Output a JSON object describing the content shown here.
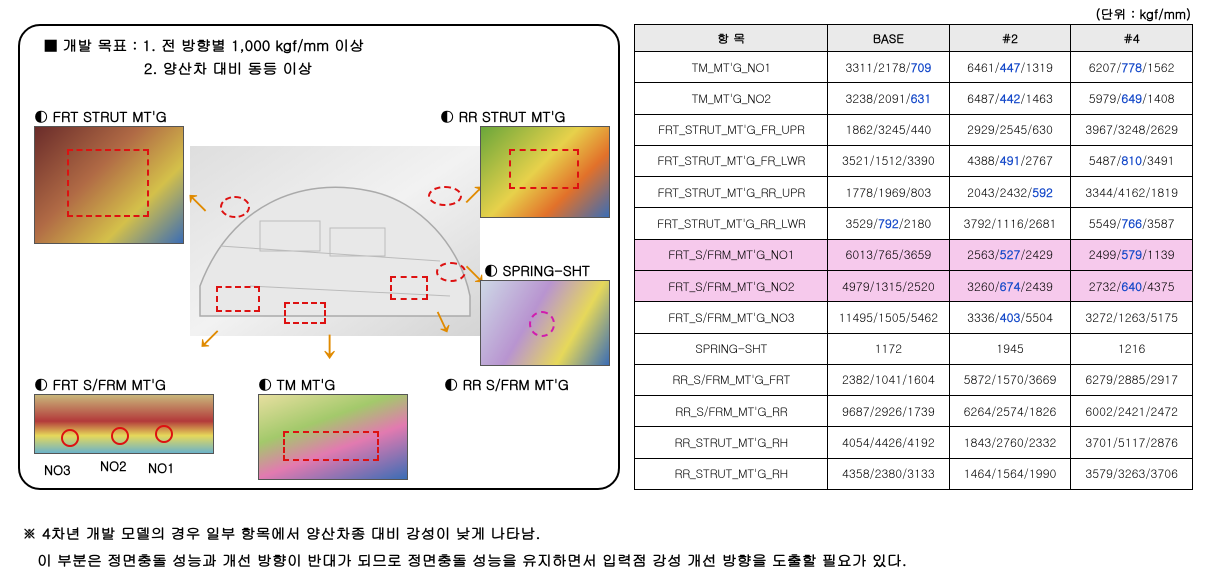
{
  "unit": "(단위 : kgf/mm)",
  "goal_prefix": "■ 개발 목표 : ",
  "goal1": "1. 전 방향별 1,000 kgf/mm 이상",
  "goal2": "2. 양산차 대비 동등 이상",
  "callouts": {
    "frt_strut": "◐ FRT STRUT MT'G",
    "rr_strut": "◐ RR STRUT MT'G",
    "spring_sht": "◐ SPRING-SHT",
    "frt_sfrm": "◐ FRT S/FRM MT'G",
    "tm": "◐ TM MT'G",
    "rr_sfrm": "◐ RR S/FRM MT'G"
  },
  "no_labels": {
    "no1": "NO1",
    "no2": "NO2",
    "no3": "NO3"
  },
  "table": {
    "headers": [
      "항 목",
      "BASE",
      "#2",
      "#4"
    ],
    "rows": [
      {
        "item": "TM_MT'G_NO1",
        "hl": false,
        "cells": [
          [
            {
              "t": "3311/2178/",
              "c": 0
            },
            {
              "t": "709",
              "c": 1
            }
          ],
          [
            {
              "t": "6461/",
              "c": 0
            },
            {
              "t": "447",
              "c": 1
            },
            {
              "t": "/1319",
              "c": 0
            }
          ],
          [
            {
              "t": "6207/",
              "c": 0
            },
            {
              "t": "778",
              "c": 1
            },
            {
              "t": "/1562",
              "c": 0
            }
          ]
        ]
      },
      {
        "item": "TM_MT'G_NO2",
        "hl": false,
        "cells": [
          [
            {
              "t": "3238/2091/",
              "c": 0
            },
            {
              "t": "631",
              "c": 1
            }
          ],
          [
            {
              "t": "6487/",
              "c": 0
            },
            {
              "t": "442",
              "c": 1
            },
            {
              "t": "/1463",
              "c": 0
            }
          ],
          [
            {
              "t": "5979/",
              "c": 0
            },
            {
              "t": "649",
              "c": 1
            },
            {
              "t": "/1408",
              "c": 0
            }
          ]
        ]
      },
      {
        "item": "FRT_STRUT_MT'G_FR_UPR",
        "hl": false,
        "cells": [
          [
            {
              "t": "1862/3245/440",
              "c": 0
            }
          ],
          [
            {
              "t": "2929/2545/630",
              "c": 0
            }
          ],
          [
            {
              "t": "3967/3248/2629",
              "c": 0
            }
          ]
        ]
      },
      {
        "item": "FRT_STRUT_MT'G_FR_LWR",
        "hl": false,
        "cells": [
          [
            {
              "t": "3521/1512/3390",
              "c": 0
            }
          ],
          [
            {
              "t": "4388/",
              "c": 0
            },
            {
              "t": "491",
              "c": 1
            },
            {
              "t": "/2767",
              "c": 0
            }
          ],
          [
            {
              "t": "5487/",
              "c": 0
            },
            {
              "t": "810",
              "c": 1
            },
            {
              "t": "/3491",
              "c": 0
            }
          ]
        ]
      },
      {
        "item": "FRT_STRUT_MT'G_RR_UPR",
        "hl": false,
        "cells": [
          [
            {
              "t": "1778/1969/803",
              "c": 0
            }
          ],
          [
            {
              "t": "2043/2432/",
              "c": 0
            },
            {
              "t": "592",
              "c": 1
            }
          ],
          [
            {
              "t": "3344/4162/1819",
              "c": 0
            }
          ]
        ]
      },
      {
        "item": "FRT_STRUT_MT'G_RR_LWR",
        "hl": false,
        "cells": [
          [
            {
              "t": "3529/",
              "c": 0
            },
            {
              "t": "792",
              "c": 1
            },
            {
              "t": "/2180",
              "c": 0
            }
          ],
          [
            {
              "t": "3792/1116/2681",
              "c": 0
            }
          ],
          [
            {
              "t": "5549/",
              "c": 0
            },
            {
              "t": "766",
              "c": 1
            },
            {
              "t": "/3587",
              "c": 0
            }
          ]
        ]
      },
      {
        "item": "FRT_S/FRM_MT'G_NO1",
        "hl": true,
        "cells": [
          [
            {
              "t": "6013/765/3659",
              "c": 0
            }
          ],
          [
            {
              "t": "2563/",
              "c": 0
            },
            {
              "t": "527",
              "c": 1
            },
            {
              "t": "/2429",
              "c": 0
            }
          ],
          [
            {
              "t": "2499/",
              "c": 0
            },
            {
              "t": "579",
              "c": 1
            },
            {
              "t": "/1139",
              "c": 0
            }
          ]
        ]
      },
      {
        "item": "FRT_S/FRM_MT'G_NO2",
        "hl": true,
        "cells": [
          [
            {
              "t": "4979/1315/2520",
              "c": 0
            }
          ],
          [
            {
              "t": "3260/",
              "c": 0
            },
            {
              "t": "674",
              "c": 1
            },
            {
              "t": "/2439",
              "c": 0
            }
          ],
          [
            {
              "t": "2732/",
              "c": 0
            },
            {
              "t": "640",
              "c": 1
            },
            {
              "t": "/4375",
              "c": 0
            }
          ]
        ]
      },
      {
        "item": "FRT_S/FRM_MT'G_NO3",
        "hl": false,
        "cells": [
          [
            {
              "t": "11495/1505/5462",
              "c": 0
            }
          ],
          [
            {
              "t": "3336/",
              "c": 0
            },
            {
              "t": "403",
              "c": 1
            },
            {
              "t": "/5504",
              "c": 0
            }
          ],
          [
            {
              "t": "3272/1263/5175",
              "c": 0
            }
          ]
        ]
      },
      {
        "item": "SPRING-SHT",
        "hl": false,
        "cells": [
          [
            {
              "t": "1172",
              "c": 0
            }
          ],
          [
            {
              "t": "1945",
              "c": 0
            }
          ],
          [
            {
              "t": "1216",
              "c": 0
            }
          ]
        ]
      },
      {
        "item": "RR_S/FRM_MT'G_FRT",
        "hl": false,
        "cells": [
          [
            {
              "t": "2382/1041/1604",
              "c": 0
            }
          ],
          [
            {
              "t": "5872/1570/3669",
              "c": 0
            }
          ],
          [
            {
              "t": "6279/2885/2917",
              "c": 0
            }
          ]
        ]
      },
      {
        "item": "RR_S/FRM_MT'G_RR",
        "hl": false,
        "cells": [
          [
            {
              "t": "9687/2926/1739",
              "c": 0
            }
          ],
          [
            {
              "t": "6264/2574/1826",
              "c": 0
            }
          ],
          [
            {
              "t": "6002/2421/2472",
              "c": 0
            }
          ]
        ]
      },
      {
        "item": "RR_STRUT_MT'G_RH",
        "hl": false,
        "cells": [
          [
            {
              "t": "4054/4426/4192",
              "c": 0
            }
          ],
          [
            {
              "t": "1843/2760/2332",
              "c": 0
            }
          ],
          [
            {
              "t": "3701/5117/2876",
              "c": 0
            }
          ]
        ]
      },
      {
        "item": "RR_STRUT_MT'G_RH",
        "hl": false,
        "cells": [
          [
            {
              "t": "4358/2380/3133",
              "c": 0
            }
          ],
          [
            {
              "t": "1464/1564/1990",
              "c": 0
            }
          ],
          [
            {
              "t": "3579/3263/3706",
              "c": 0
            }
          ]
        ]
      }
    ]
  },
  "footnote1": "※ 4차년 개발 모델의 경우 일부 항목에서 양산차종 대비 강성이 낮게 나타남.",
  "footnote2": "이 부분은 정면충돌 성능과 개선 방향이 반대가 되므로 정면충돌 성능을 유지하면서 입력점 강성 개선 방향을 도출할 필요가 있다.",
  "thumb_styles": {
    "frt_strut": {
      "bg": "linear-gradient(135deg,#6a2c2a 0%,#b06a45 40%,#d4c04a 70%,#3b6db5 100%)"
    },
    "rr_strut": {
      "bg": "linear-gradient(135deg,#6aa63a 0%,#e7d14b 45%,#e2712a 70%,#3b6db5 100%)"
    },
    "spring_sht": {
      "bg": "linear-gradient(120deg,#cdd8e6 0%,#b894d0 40%,#e6d85a 70%,#3b6db5 100%)"
    },
    "frt_sfrm": {
      "bg": "linear-gradient(180deg,#c9b77b 0%,#b33a3a 45%,#e6d85a 70%,#6bb3c9 100%)"
    },
    "tm": {
      "bg": "linear-gradient(160deg,#e7dfa0 0%,#a3c96b 35%,#e27ab0 60%,#3b6db5 100%)"
    },
    "car_body": {
      "bg": "linear-gradient(150deg,#dedede 0%,#f0f0f0 45%,#d6d6d6 100%)"
    }
  }
}
